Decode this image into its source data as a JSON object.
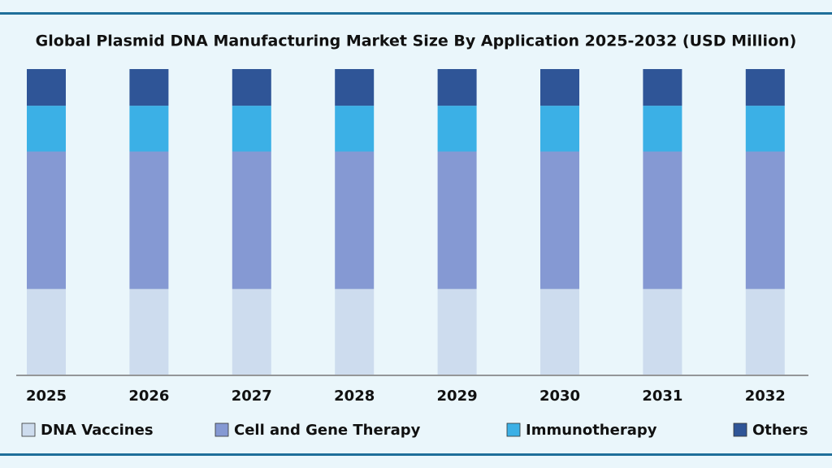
{
  "chart_data": {
    "type": "stacked_bar_100",
    "title": "Global Plasmid DNA Manufacturing Market Size By Application 2025-2032 (USD Million)",
    "categories": [
      "2025",
      "2026",
      "2027",
      "2028",
      "2029",
      "2030",
      "2031",
      "2032"
    ],
    "series": [
      {
        "name": "DNA Vaccines",
        "color": "#cddcee",
        "values": [
          28,
          28,
          28,
          28,
          28,
          28,
          28,
          28
        ]
      },
      {
        "name": "Cell and Gene Therapy",
        "color": "#8599d3",
        "values": [
          45,
          45,
          45,
          45,
          45,
          45,
          45,
          45
        ]
      },
      {
        "name": "Immunotherapy",
        "color": "#3bb0e6",
        "values": [
          15,
          15,
          15,
          15,
          15,
          15,
          15,
          15
        ]
      },
      {
        "name": "Others",
        "color": "#2f5597",
        "values": [
          12,
          12,
          12,
          12,
          12,
          12,
          12,
          12
        ]
      }
    ]
  }
}
